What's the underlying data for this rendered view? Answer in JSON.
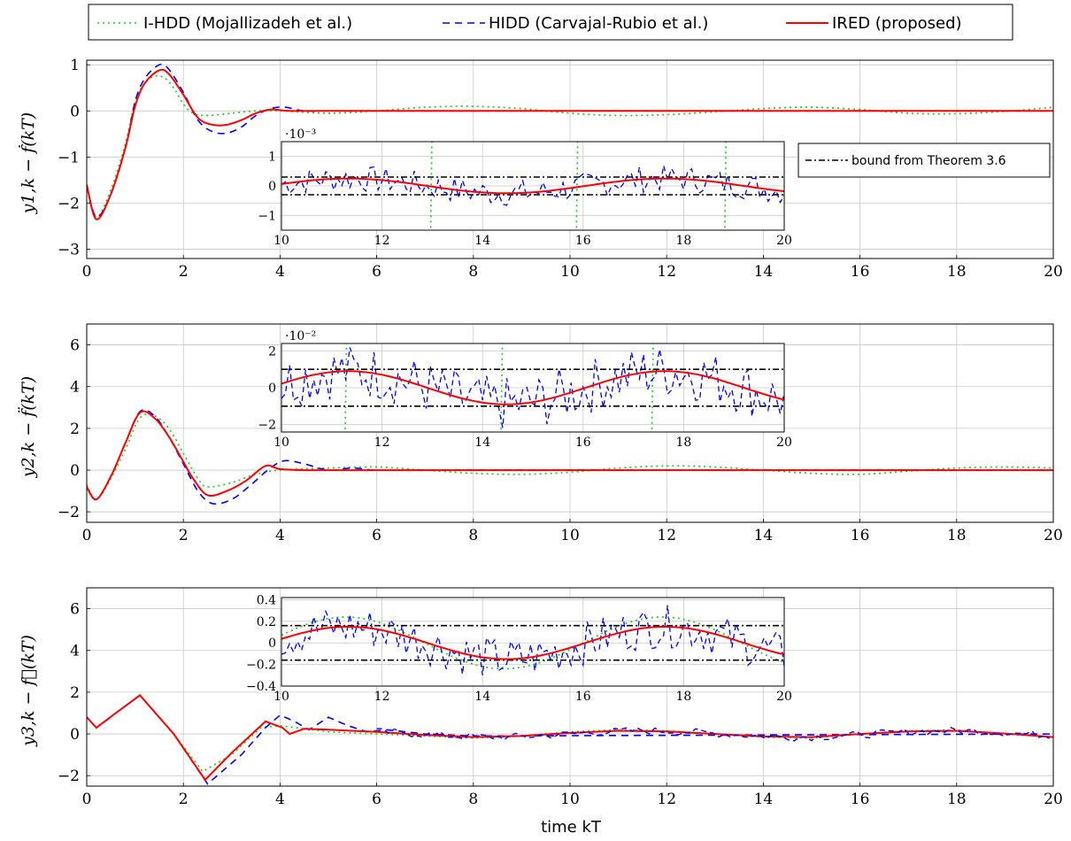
{
  "legend": [
    {
      "name": "I-HDD (Mojallizadeh et al.)",
      "color": "#22cc22",
      "dash": "2,4"
    },
    {
      "name": "HIDD (Carvajal-Rubio et al.)",
      "color": "#0000ff",
      "dash": "8,6"
    },
    {
      "name": "IRED (proposed)",
      "color": "#ff0000",
      "dash": ""
    }
  ],
  "bound_legend": {
    "name": "bound from Theorem 3.6",
    "color": "#000000",
    "dash": "7,3,2,3"
  },
  "xlabel": "time kT",
  "chart_data": [
    {
      "type": "line",
      "ylabel": "y1,k − ḟ(kT)",
      "xlim": [
        0,
        20
      ],
      "ylim": [
        -3.2,
        1.1
      ],
      "xticks": [
        0,
        2,
        4,
        6,
        8,
        10,
        12,
        14,
        16,
        18,
        20
      ],
      "yticks": [
        -3,
        -2,
        -1,
        0,
        1
      ],
      "grid": true,
      "series": [
        {
          "name": "I-HDD (Mojallizadeh et al.)",
          "x": [
            0,
            0.2,
            0.5,
            0.8,
            1.0,
            1.2,
            1.4,
            1.6,
            1.8,
            2.0,
            2.2,
            2.5,
            3.0,
            3.5,
            4.0,
            5,
            6,
            7,
            8,
            9,
            10,
            11,
            12,
            13,
            14,
            15,
            16,
            17,
            18,
            19,
            20
          ],
          "y": [
            -1.6,
            -2.3,
            -1.7,
            -0.7,
            0.2,
            0.6,
            0.75,
            0.72,
            0.5,
            0.15,
            -0.05,
            -0.1,
            -0.05,
            0.0,
            0.0,
            -0.05,
            0.0,
            0.08,
            0.1,
            0.05,
            -0.05,
            -0.1,
            -0.08,
            -0.02,
            0.05,
            0.08,
            0.03,
            -0.05,
            -0.06,
            -0.01,
            0.08
          ]
        },
        {
          "name": "HIDD (Carvajal-Rubio et al.)",
          "x": [
            0,
            0.2,
            0.5,
            0.8,
            1.0,
            1.2,
            1.5,
            1.7,
            2.0,
            2.3,
            2.6,
            2.9,
            3.2,
            3.5,
            3.8,
            4.1,
            4.5,
            5,
            6,
            10,
            20
          ],
          "y": [
            -1.6,
            -2.3,
            -1.8,
            -0.8,
            0.2,
            0.7,
            1.0,
            0.9,
            0.4,
            -0.2,
            -0.45,
            -0.48,
            -0.35,
            -0.1,
            0.05,
            0.08,
            0.0,
            0.0,
            0.0,
            0.0,
            0.0
          ]
        },
        {
          "name": "IRED (proposed)",
          "x": [
            0,
            0.2,
            0.5,
            0.8,
            1.0,
            1.2,
            1.5,
            1.7,
            2.0,
            2.3,
            2.6,
            2.9,
            3.2,
            3.5,
            3.8,
            4.2,
            5,
            10,
            20
          ],
          "y": [
            -1.6,
            -2.35,
            -1.8,
            -0.8,
            0.1,
            0.6,
            0.88,
            0.8,
            0.35,
            -0.15,
            -0.3,
            -0.3,
            -0.2,
            -0.05,
            0.03,
            0.0,
            0.0,
            0.0,
            0.0
          ]
        }
      ],
      "inset": {
        "xlim": [
          10,
          20
        ],
        "ylim": [
          -1.5,
          1.5
        ],
        "xticks": [
          10,
          12,
          14,
          16,
          18,
          20
        ],
        "yticks": [
          -1,
          0,
          1
        ],
        "multiplier": "·10⁻³",
        "bound": 0.3,
        "ired": {
          "amplitude": 0.25,
          "period": 6.3,
          "phase": 10.0
        },
        "noise": 0.45,
        "ihdd_spikes": [
          13.0,
          15.9,
          18.85
        ]
      }
    },
    {
      "type": "line",
      "ylabel": "y2,k − f̈(kT)",
      "xlim": [
        0,
        20
      ],
      "ylim": [
        -2.5,
        7
      ],
      "xticks": [
        0,
        2,
        4,
        6,
        8,
        10,
        12,
        14,
        16,
        18,
        20
      ],
      "yticks": [
        -2,
        0,
        2,
        4,
        6
      ],
      "grid": true,
      "series": [
        {
          "name": "I-HDD (Mojallizadeh et al.)",
          "x": [
            0,
            0.2,
            0.5,
            0.8,
            1.1,
            1.4,
            1.7,
            2.0,
            2.3,
            2.5,
            3.0,
            3.5,
            4.0,
            5,
            6,
            7,
            8,
            9,
            10,
            11,
            12,
            13,
            14,
            15,
            16,
            17,
            18,
            19,
            20
          ],
          "y": [
            -0.7,
            -1.4,
            -0.4,
            1.0,
            2.5,
            2.6,
            2.0,
            0.8,
            -0.4,
            -0.8,
            -0.6,
            -0.2,
            0.0,
            0.1,
            0.15,
            0.0,
            -0.15,
            -0.2,
            -0.1,
            0.1,
            0.2,
            0.15,
            0.0,
            -0.15,
            -0.2,
            -0.05,
            0.1,
            0.15,
            0.1
          ]
        },
        {
          "name": "HIDD (Carvajal-Rubio et al.)",
          "x": [
            0,
            0.2,
            0.5,
            0.8,
            1.1,
            1.4,
            1.7,
            2.0,
            2.3,
            2.6,
            3.0,
            3.4,
            3.8,
            4.1,
            4.5,
            5.0,
            5.5,
            6,
            7,
            10,
            20
          ],
          "y": [
            -0.8,
            -1.4,
            -0.3,
            1.3,
            2.8,
            2.6,
            1.6,
            0.3,
            -1.0,
            -1.6,
            -1.4,
            -0.7,
            0.1,
            0.45,
            0.3,
            0.0,
            0.1,
            0.0,
            0.0,
            0.0,
            0.0
          ]
        },
        {
          "name": "IRED (proposed)",
          "x": [
            0,
            0.2,
            0.5,
            0.8,
            1.1,
            1.4,
            1.7,
            2.0,
            2.2,
            2.5,
            2.9,
            3.3,
            3.7,
            4.0,
            4.5,
            5,
            10,
            20
          ],
          "y": [
            -0.8,
            -1.4,
            -0.3,
            1.3,
            2.75,
            2.5,
            1.6,
            0.4,
            -0.4,
            -1.2,
            -1.0,
            -0.5,
            0.2,
            0.05,
            0.0,
            0.0,
            0.0,
            0.0
          ]
        }
      ],
      "inset": {
        "xlim": [
          10,
          20
        ],
        "ylim": [
          -2.4,
          2.4
        ],
        "xticks": [
          10,
          12,
          14,
          16,
          18,
          20
        ],
        "yticks": [
          -2,
          0,
          2
        ],
        "multiplier": "·10⁻²",
        "bound": 1.0,
        "ired": {
          "amplitude": 0.9,
          "period": 6.3,
          "phase": 10.0
        },
        "noise": 1.5,
        "ihdd_spikes": [
          11.3,
          14.4,
          17.4
        ]
      }
    },
    {
      "type": "line",
      "ylabel": "y3,k − f⃛(kT)",
      "xlim": [
        0,
        20
      ],
      "ylim": [
        -2.5,
        7
      ],
      "xticks": [
        0,
        2,
        4,
        6,
        8,
        10,
        12,
        14,
        16,
        18,
        20
      ],
      "yticks": [
        -2,
        0,
        2,
        4,
        6
      ],
      "grid": true,
      "series": [
        {
          "name": "I-HDD (Mojallizadeh et al.)",
          "x": [
            0,
            0.2,
            0.6,
            1.1,
            1.8,
            2.4,
            3.0,
            3.6,
            4.0,
            5,
            6,
            7,
            8,
            9,
            10,
            11,
            12,
            13,
            14,
            15,
            16,
            17,
            18,
            19,
            20
          ],
          "y": [
            0.8,
            0.3,
            1.0,
            1.85,
            0.0,
            -1.8,
            -1.0,
            0.3,
            0.4,
            0.1,
            0.0,
            -0.1,
            -0.2,
            -0.1,
            0.1,
            0.2,
            0.15,
            0.0,
            -0.15,
            -0.2,
            0.0,
            0.15,
            0.2,
            0.0,
            -0.15
          ]
        },
        {
          "name": "HIDD (Carvajal-Rubio et al.)",
          "x": [
            0,
            0.2,
            0.6,
            1.1,
            1.8,
            2.5,
            3.2,
            3.7,
            4.0,
            4.3,
            4.6,
            5.0,
            5.4,
            5.8,
            6.2,
            7,
            8,
            20
          ],
          "y": [
            0.8,
            0.3,
            1.0,
            1.85,
            0.0,
            -2.4,
            -1.0,
            0.3,
            0.9,
            0.6,
            0.2,
            0.8,
            0.4,
            0.1,
            0.2,
            0.0,
            -0.1,
            0.0
          ]
        },
        {
          "name": "IRED (proposed)",
          "x": [
            0,
            0.2,
            0.6,
            1.1,
            1.8,
            2.45,
            3.0,
            3.7,
            4.05,
            4.2,
            4.5,
            5,
            6,
            7,
            8,
            9,
            10,
            11,
            12,
            13,
            14,
            15,
            16,
            17,
            18,
            19,
            20
          ],
          "y": [
            0.8,
            0.3,
            1.0,
            1.85,
            0.0,
            -2.2,
            -0.9,
            0.6,
            0.3,
            0.0,
            0.25,
            0.2,
            0.1,
            -0.05,
            -0.15,
            -0.1,
            0.05,
            0.15,
            0.12,
            0.0,
            -0.12,
            -0.15,
            0.0,
            0.12,
            0.15,
            0.02,
            -0.15
          ]
        }
      ],
      "inset": {
        "xlim": [
          10,
          20
        ],
        "ylim": [
          -0.4,
          0.42
        ],
        "xticks": [
          10,
          12,
          14,
          16,
          18,
          20
        ],
        "yticks": [
          -0.4,
          -0.2,
          0,
          0.2,
          0.4
        ],
        "multiplier": "",
        "bound": 0.16,
        "ired": {
          "amplitude": 0.15,
          "period": 6.3,
          "phase": 10.0
        },
        "noise": 0.2,
        "ihdd_spikes": []
      }
    }
  ]
}
